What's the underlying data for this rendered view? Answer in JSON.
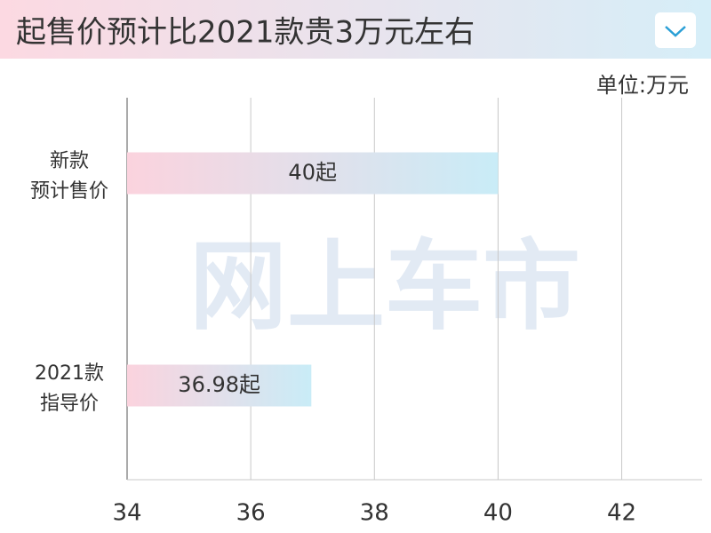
{
  "chart_data": {
    "type": "bar",
    "orientation": "horizontal",
    "title": "起售价预计比2021款贵3万元左右",
    "unit_label": "单位:万元",
    "watermark": "网上车市",
    "categories": [
      "新款\n预计售价",
      "2021款\n指导价"
    ],
    "values": [
      40,
      36.98
    ],
    "value_labels": [
      "40起",
      "36.98起"
    ],
    "colors": [
      "#fbd3de",
      "#c9ecf7"
    ],
    "xlim": [
      34,
      43.3
    ],
    "xticks": [
      34,
      36,
      38,
      40,
      42
    ],
    "grid": true
  }
}
